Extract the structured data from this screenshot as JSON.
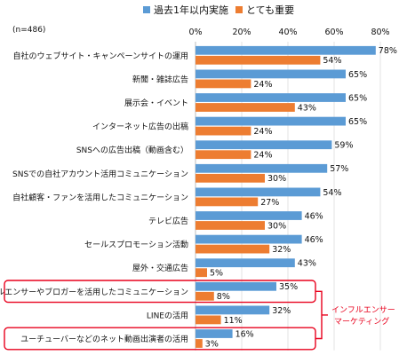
{
  "chart_data": {
    "type": "bar",
    "orientation": "horizontal",
    "sample_note": "(n=486)",
    "categories": [
      "自社のウェブサイト・キャンペーンサイトの運用",
      "新聞・雑誌広告",
      "展示会・イベント",
      "インターネット広告の出稿",
      "SNSへの広告出稿（動画含む）",
      "SNSでの自社アカウント活用コミュニケーション",
      "自社顧客・ファンを活用したコミュニケーション",
      "テレビ広告",
      "セールスプロモーション活動",
      "屋外・交通広告",
      "インフルエンサーやブロガーを活用したコミュニケーション",
      "LINEの活用",
      "ユーチューバーなどのネット動画出演者の活用"
    ],
    "series": [
      {
        "name": "過去1年以内実施",
        "color": "#5B9BD5",
        "values": [
          78,
          65,
          65,
          65,
          59,
          57,
          54,
          46,
          46,
          43,
          35,
          32,
          16
        ]
      },
      {
        "name": "とても重要",
        "color": "#ED7D31",
        "values": [
          54,
          24,
          43,
          24,
          24,
          30,
          27,
          30,
          32,
          5,
          8,
          11,
          3
        ]
      }
    ],
    "value_suffix": "%",
    "xlim": [
      0,
      80
    ],
    "xticks": [
      "0%",
      "20%",
      "40%",
      "60%",
      "80%"
    ],
    "legend_position": "top",
    "highlighted_categories": [
      10,
      12
    ],
    "bracket_categories": [
      10,
      11,
      12
    ],
    "annotation": {
      "lines": [
        "インフルエンサー",
        "マーケティング"
      ],
      "color": "#E8001C"
    }
  }
}
